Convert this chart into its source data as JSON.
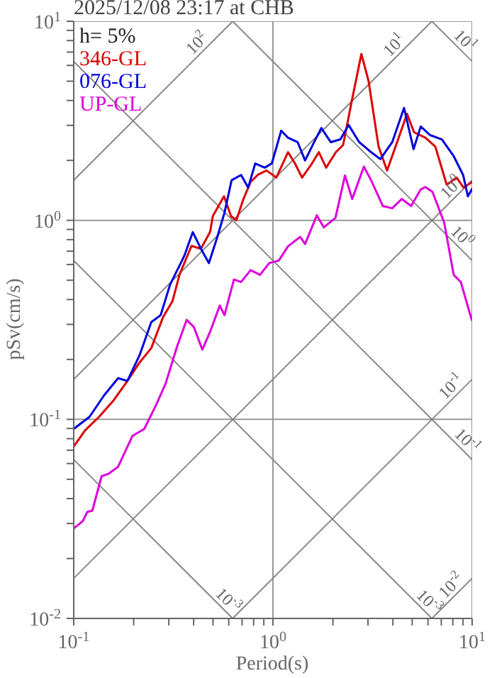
{
  "chart_data": {
    "type": "line",
    "title": "2025/12/08 23:17 at CHB",
    "xlabel": "Period(s)",
    "ylabel": "pSv(cm/s)",
    "log": "xy",
    "grid": true,
    "legend": "top left",
    "marker": "none",
    "line_style": "solid",
    "xlim": [
      0.1,
      10
    ],
    "ylim": [
      0.01,
      10
    ],
    "xticks": [
      {
        "value": 0.1,
        "label": "10$^{-1}$"
      },
      {
        "value": 0.2,
        "label": null
      },
      {
        "value": 0.3,
        "label": null
      },
      {
        "value": 0.4,
        "label": null
      },
      {
        "value": 0.5,
        "label": null
      },
      {
        "value": 0.6,
        "label": null
      },
      {
        "value": 0.7,
        "label": null
      },
      {
        "value": 0.8,
        "label": null
      },
      {
        "value": 0.9,
        "label": null
      },
      {
        "value": 1,
        "label": "10$^{0}$"
      },
      {
        "value": 2,
        "label": null
      },
      {
        "value": 3,
        "label": null
      },
      {
        "value": 4,
        "label": null
      },
      {
        "value": 5,
        "label": null
      },
      {
        "value": 6,
        "label": null
      },
      {
        "value": 7,
        "label": null
      },
      {
        "value": 8,
        "label": null
      },
      {
        "value": 9,
        "label": null
      },
      {
        "value": 10,
        "label": "10$^{1}$"
      }
    ],
    "yticks": [
      {
        "value": 0.01,
        "label": "10$^{-2}$"
      },
      {
        "value": 0.02,
        "label": null
      },
      {
        "value": 0.03,
        "label": null
      },
      {
        "value": 0.04,
        "label": null
      },
      {
        "value": 0.05,
        "label": null
      },
      {
        "value": 0.06,
        "label": null
      },
      {
        "value": 0.07,
        "label": null
      },
      {
        "value": 0.08,
        "label": null
      },
      {
        "value": 0.09,
        "label": null
      },
      {
        "value": 0.1,
        "label": "10$^{-1}$"
      },
      {
        "value": 0.2,
        "label": null
      },
      {
        "value": 0.3,
        "label": null
      },
      {
        "value": 0.4,
        "label": null
      },
      {
        "value": 0.5,
        "label": null
      },
      {
        "value": 0.6,
        "label": null
      },
      {
        "value": 0.7,
        "label": null
      },
      {
        "value": 0.8,
        "label": null
      },
      {
        "value": 0.9,
        "label": null
      },
      {
        "value": 1,
        "label": "10$^{0}$"
      },
      {
        "value": 2,
        "label": null
      },
      {
        "value": 3,
        "label": null
      },
      {
        "value": 4,
        "label": null
      },
      {
        "value": 5,
        "label": null
      },
      {
        "value": 6,
        "label": null
      },
      {
        "value": 7,
        "label": null
      },
      {
        "value": 8,
        "label": null
      },
      {
        "value": 9,
        "label": null
      },
      {
        "value": 10,
        "label": "10$^{1}$"
      }
    ],
    "series": [
      {
        "type": "line",
        "color": "#808080",
        "x": [
          6.28,
          10
        ],
        "values": [
          0.01,
          0.0159
        ]
      },
      {
        "type": "line",
        "color": "#808080",
        "x": [
          0.628,
          10
        ],
        "values": [
          0.01,
          0.159
        ]
      },
      {
        "type": "line",
        "color": "#808080",
        "x": [
          0.1,
          10
        ],
        "values": [
          0.0159,
          1.59
        ]
      },
      {
        "type": "line",
        "color": "#808080",
        "x": [
          0.1,
          6.28
        ],
        "values": [
          0.159,
          10
        ]
      },
      {
        "type": "line",
        "color": "#808080",
        "x": [
          0.1,
          0.628
        ],
        "values": [
          1.59,
          10
        ]
      },
      {
        "type": "line",
        "color": "#808080",
        "x": [
          0.1,
          0.628
        ],
        "values": [
          0.0628,
          0.01
        ]
      },
      {
        "type": "line",
        "color": "#808080",
        "x": [
          0.1,
          6.28
        ],
        "values": [
          0.628,
          0.01
        ]
      },
      {
        "type": "line",
        "color": "#808080",
        "x": [
          0.1,
          10
        ],
        "values": [
          6.28,
          0.0628
        ]
      },
      {
        "type": "line",
        "color": "#808080",
        "x": [
          0.628,
          10
        ],
        "values": [
          10,
          0.628
        ]
      },
      {
        "type": "line",
        "color": "#808080",
        "x": [
          6.28,
          10
        ],
        "values": [
          10,
          6.28
        ]
      },
      {
        "name": "346-GL",
        "color": "#dd0000",
        "x": [
          0.1,
          0.114,
          0.134,
          0.158,
          0.186,
          0.214,
          0.245,
          0.281,
          0.313,
          0.34,
          0.39,
          0.435,
          0.484,
          0.499,
          0.568,
          0.616,
          0.655,
          0.711,
          0.773,
          0.838,
          0.929,
          1.04,
          1.19,
          1.29,
          1.4,
          1.57,
          1.7,
          1.85,
          2.07,
          2.25,
          2.48,
          2.78,
          3.02,
          3.39,
          3.74,
          4.2,
          4.71,
          5.11,
          5.82,
          6.53,
          7.45,
          8.36,
          9.06,
          10
        ],
        "values": [
          0.073,
          0.088,
          0.103,
          0.124,
          0.156,
          0.193,
          0.228,
          0.327,
          0.392,
          0.535,
          0.744,
          0.72,
          0.877,
          1.05,
          1.32,
          1.05,
          1.0,
          1.28,
          1.56,
          1.69,
          1.78,
          1.64,
          2.2,
          1.93,
          1.64,
          1.93,
          2.2,
          1.84,
          2.2,
          2.39,
          3.92,
          6.85,
          5.01,
          2.35,
          1.78,
          2.47,
          3.43,
          2.77,
          2.6,
          2.35,
          1.51,
          1.64,
          1.46,
          1.56
        ]
      },
      {
        "name": "076-GL",
        "color": "#0000dd",
        "x": [
          0.1,
          0.12,
          0.142,
          0.167,
          0.186,
          0.214,
          0.245,
          0.273,
          0.305,
          0.359,
          0.396,
          0.435,
          0.477,
          0.526,
          0.571,
          0.62,
          0.692,
          0.751,
          0.815,
          0.91,
          0.987,
          1.1,
          1.19,
          1.33,
          1.45,
          1.61,
          1.75,
          1.95,
          2.18,
          2.4,
          2.71,
          3.11,
          3.46,
          3.97,
          4.55,
          5.08,
          5.52,
          6.15,
          7.05,
          8.08,
          9.01,
          9.52,
          10
        ],
        "values": [
          0.0896,
          0.103,
          0.132,
          0.161,
          0.156,
          0.21,
          0.308,
          0.334,
          0.477,
          0.663,
          0.872,
          0.72,
          0.61,
          0.826,
          1.09,
          1.59,
          1.69,
          1.46,
          1.93,
          1.84,
          1.93,
          2.82,
          2.6,
          2.47,
          2.0,
          2.47,
          2.91,
          2.47,
          2.55,
          3.01,
          2.47,
          2.2,
          2.03,
          2.47,
          3.67,
          2.28,
          2.96,
          2.68,
          2.55,
          2.1,
          1.69,
          1.32,
          1.44
        ]
      },
      {
        "name": "UP-GL",
        "color": "#dd00dd",
        "x": [
          0.1,
          0.111,
          0.117,
          0.124,
          0.138,
          0.15,
          0.167,
          0.197,
          0.226,
          0.259,
          0.289,
          0.331,
          0.369,
          0.401,
          0.442,
          0.484,
          0.541,
          0.571,
          0.637,
          0.692,
          0.773,
          0.861,
          0.959,
          1.07,
          1.19,
          1.37,
          1.45,
          1.66,
          1.8,
          2.06,
          2.3,
          2.5,
          2.86,
          3.11,
          3.56,
          3.97,
          4.43,
          4.94,
          5.52,
          5.82,
          6.32,
          7.24,
          8.08,
          8.77,
          9.95
        ],
        "values": [
          0.0283,
          0.0308,
          0.0343,
          0.0348,
          0.0518,
          0.0534,
          0.0578,
          0.0825,
          0.0896,
          0.118,
          0.151,
          0.234,
          0.316,
          0.291,
          0.224,
          0.276,
          0.373,
          0.334,
          0.504,
          0.49,
          0.562,
          0.532,
          0.61,
          0.628,
          0.74,
          0.826,
          0.76,
          1.06,
          0.921,
          1.03,
          1.68,
          1.28,
          1.86,
          1.59,
          1.18,
          1.15,
          1.28,
          1.18,
          1.43,
          1.47,
          1.39,
          0.973,
          0.532,
          0.49,
          0.316
        ]
      }
    ],
    "annotations": [
      "h= 5%",
      {
        "text": "10$^{2}$",
        "x": 0.45,
        "y": 7.16
      },
      {
        "text": "10$^{1}$",
        "x": 4.4,
        "y": 7.0
      },
      {
        "text": "10$^{1}$",
        "x": 8.5,
        "y": 7.39
      },
      {
        "text": "10$^{0}$",
        "x": 8.5,
        "y": 1.35
      },
      {
        "text": "10$^{0}$",
        "x": 8.2,
        "y": 0.766
      },
      {
        "text": "10$^{-1}$",
        "x": 8.5,
        "y": 0.135
      },
      {
        "text": "10$^{-1}$",
        "x": 8.7,
        "y": 0.0722
      },
      {
        "text": "10$^{-3}$",
        "x": 0.55,
        "y": 0.0114
      },
      {
        "text": "10$^{-3}$",
        "x": 5.6,
        "y": 0.0112
      },
      {
        "text": "10$^{-2}$",
        "x": 8.5,
        "y": 0.0135
      }
    ]
  }
}
